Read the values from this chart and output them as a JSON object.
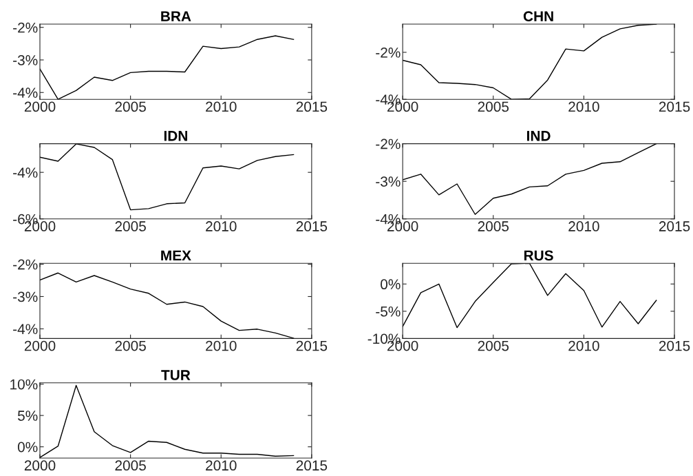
{
  "chart_data": [
    {
      "type": "line",
      "title": "BRA",
      "x": [
        2000,
        2001,
        2002,
        2003,
        2004,
        2005,
        2006,
        2007,
        2008,
        2009,
        2010,
        2011,
        2012,
        2013,
        2014
      ],
      "series": [
        {
          "color": "#000000",
          "values": [
            -3.28,
            -4.21,
            -3.94,
            -3.53,
            -3.63,
            -3.39,
            -3.35,
            -3.35,
            -3.37,
            -2.58,
            -2.65,
            -2.6,
            -2.37,
            -2.26,
            -2.37
          ]
        }
      ],
      "xlim": [
        2000,
        2015
      ],
      "xticks": [
        2000,
        2005,
        2010,
        2015
      ],
      "ylim": [
        -4.21,
        -1.9
      ],
      "yticks": [
        {
          "value": -4,
          "label": "-4%"
        },
        {
          "value": -3,
          "label": "-3%"
        },
        {
          "value": -2,
          "label": "-2%"
        }
      ],
      "grid": false,
      "legend": false
    },
    {
      "type": "line",
      "title": "CHN",
      "x": [
        2000,
        2001,
        2002,
        2003,
        2004,
        2005,
        2006,
        2007,
        2008,
        2009,
        2010,
        2011,
        2012,
        2013,
        2014
      ],
      "series": [
        {
          "color": "#000000",
          "values": [
            -2.34,
            -2.53,
            -3.29,
            -3.32,
            -3.37,
            -3.51,
            -4.0,
            -3.98,
            -3.18,
            -1.86,
            -1.94,
            -1.36,
            -1.0,
            -0.85,
            -0.8
          ]
        }
      ],
      "xlim": [
        2000,
        2015
      ],
      "xticks": [
        2000,
        2005,
        2010,
        2015
      ],
      "ylim": [
        -4.0,
        -0.8
      ],
      "yticks": [
        {
          "value": -4,
          "label": "-4%"
        },
        {
          "value": -2,
          "label": "-2%"
        }
      ],
      "grid": false,
      "legend": false
    },
    {
      "type": "line",
      "title": "IDN",
      "x": [
        2000,
        2001,
        2002,
        2003,
        2004,
        2005,
        2006,
        2007,
        2008,
        2009,
        2010,
        2011,
        2012,
        2013,
        2014
      ],
      "series": [
        {
          "color": "#000000",
          "values": [
            -3.35,
            -3.52,
            -2.78,
            -2.93,
            -3.45,
            -5.61,
            -5.56,
            -5.35,
            -5.31,
            -3.81,
            -3.73,
            -3.85,
            -3.49,
            -3.32,
            -3.24
          ]
        }
      ],
      "xlim": [
        2000,
        2015
      ],
      "xticks": [
        2000,
        2005,
        2010,
        2015
      ],
      "ylim": [
        -6.0,
        -2.77
      ],
      "yticks": [
        {
          "value": -6,
          "label": "-6%"
        },
        {
          "value": -4,
          "label": "-4%"
        }
      ],
      "grid": false,
      "legend": false
    },
    {
      "type": "line",
      "title": "IND",
      "x": [
        2000,
        2001,
        2002,
        2003,
        2004,
        2005,
        2006,
        2007,
        2008,
        2009,
        2010,
        2011,
        2012,
        2013,
        2014
      ],
      "series": [
        {
          "color": "#000000",
          "values": [
            -2.96,
            -2.81,
            -3.36,
            -3.07,
            -3.88,
            -3.45,
            -3.34,
            -3.15,
            -3.12,
            -2.81,
            -2.71,
            -2.52,
            -2.48,
            -2.24,
            -2.0
          ]
        }
      ],
      "xlim": [
        2000,
        2015
      ],
      "xticks": [
        2000,
        2005,
        2010,
        2015
      ],
      "ylim": [
        -4.0,
        -2.0
      ],
      "yticks": [
        {
          "value": -4,
          "label": "-4%"
        },
        {
          "value": -3,
          "label": "-3%"
        },
        {
          "value": -2,
          "label": "-2%"
        }
      ],
      "grid": false,
      "legend": false
    },
    {
      "type": "line",
      "title": "MEX",
      "x": [
        2000,
        2001,
        2002,
        2003,
        2004,
        2005,
        2006,
        2007,
        2008,
        2009,
        2010,
        2011,
        2012,
        2013,
        2014
      ],
      "series": [
        {
          "color": "#000000",
          "values": [
            -2.49,
            -2.27,
            -2.55,
            -2.35,
            -2.55,
            -2.77,
            -2.9,
            -3.24,
            -3.17,
            -3.31,
            -3.76,
            -4.05,
            -4.01,
            -4.13,
            -4.29
          ]
        }
      ],
      "xlim": [
        2000,
        2015
      ],
      "xticks": [
        2000,
        2005,
        2010,
        2015
      ],
      "ylim": [
        -4.3,
        -1.97
      ],
      "yticks": [
        {
          "value": -4,
          "label": "-4%"
        },
        {
          "value": -3,
          "label": "-3%"
        },
        {
          "value": -2,
          "label": "-2%"
        }
      ],
      "grid": false,
      "legend": false
    },
    {
      "type": "line",
      "title": "RUS",
      "x": [
        2000,
        2001,
        2002,
        2003,
        2004,
        2005,
        2006,
        2007,
        2008,
        2009,
        2010,
        2011,
        2012,
        2013,
        2014
      ],
      "series": [
        {
          "color": "#000000",
          "values": [
            -7.8,
            -1.6,
            0.0,
            -8.0,
            -3.2,
            0.3,
            3.7,
            3.8,
            -2.1,
            1.9,
            -1.2,
            -7.9,
            -3.2,
            -7.3,
            -3.0
          ]
        }
      ],
      "xlim": [
        2000,
        2015
      ],
      "xticks": [
        2000,
        2005,
        2010,
        2015
      ],
      "ylim": [
        -10,
        3.8
      ],
      "yticks": [
        {
          "value": -10,
          "label": "-10%"
        },
        {
          "value": -5,
          "label": "-5%"
        },
        {
          "value": 0,
          "label": "0%"
        }
      ],
      "grid": false,
      "legend": false
    },
    {
      "type": "line",
      "title": "TUR",
      "x": [
        2000,
        2001,
        2002,
        2003,
        2004,
        2005,
        2006,
        2007,
        2008,
        2009,
        2010,
        2011,
        2012,
        2013,
        2014
      ],
      "series": [
        {
          "color": "#000000",
          "values": [
            -1.7,
            0.1,
            9.8,
            2.4,
            0.2,
            -0.9,
            0.9,
            0.7,
            -0.4,
            -1.0,
            -1.0,
            -1.2,
            -1.2,
            -1.5,
            -1.4
          ]
        }
      ],
      "xlim": [
        2000,
        2015
      ],
      "xticks": [
        2000,
        2005,
        2010,
        2015
      ],
      "ylim": [
        -1.8,
        10.2
      ],
      "yticks": [
        {
          "value": 0,
          "label": "0%"
        },
        {
          "value": 5,
          "label": "5%"
        },
        {
          "value": 10,
          "label": "10%"
        }
      ],
      "grid": false,
      "legend": false
    }
  ]
}
